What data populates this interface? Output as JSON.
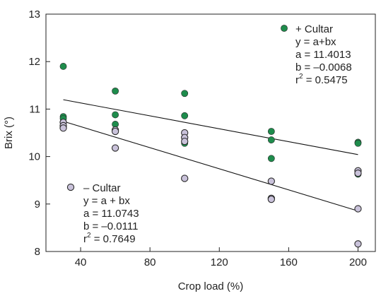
{
  "chart_data": {
    "type": "scatter",
    "xlabel": "Crop load (%)",
    "ylabel": "Brix (°)",
    "xlim": [
      20,
      210
    ],
    "ylim": [
      8,
      13
    ],
    "x_ticks": [
      40,
      80,
      120,
      160,
      200
    ],
    "y_ticks": [
      8,
      9,
      10,
      11,
      12,
      13
    ],
    "x_tick_labels": [
      "40",
      "80",
      "120",
      "160",
      "200"
    ],
    "y_tick_labels": [
      "8",
      "9",
      "10",
      "11",
      "12",
      "13"
    ],
    "grid": false,
    "series": [
      {
        "name": "+ Cultar",
        "color": "#1e8c4c",
        "marker": "filled-circle",
        "points": [
          {
            "x": 30,
            "y": 11.9
          },
          {
            "x": 30,
            "y": 10.84
          },
          {
            "x": 30,
            "y": 10.8
          },
          {
            "x": 60,
            "y": 11.38
          },
          {
            "x": 60,
            "y": 10.88
          },
          {
            "x": 60,
            "y": 10.68
          },
          {
            "x": 100,
            "y": 11.33
          },
          {
            "x": 100,
            "y": 10.86
          },
          {
            "x": 100,
            "y": 10.28
          },
          {
            "x": 150,
            "y": 10.53
          },
          {
            "x": 150,
            "y": 10.35
          },
          {
            "x": 150,
            "y": 9.96
          },
          {
            "x": 200,
            "y": 10.3
          },
          {
            "x": 200,
            "y": 10.28
          },
          {
            "x": 200,
            "y": 9.63
          }
        ],
        "fit": {
          "a": 11.4013,
          "b": -0.0068,
          "x_range": [
            30,
            200
          ]
        },
        "annotation_lines": [
          "+ Cultar",
          "y = a+bx",
          "a = 11.4013",
          "b = –0.0068",
          "r2 = 0.5475"
        ]
      },
      {
        "name": "– Cultar",
        "color": "#c9c2da",
        "marker": "open-circle",
        "points": [
          {
            "x": 30,
            "y": 10.72
          },
          {
            "x": 30,
            "y": 10.65
          },
          {
            "x": 30,
            "y": 10.6
          },
          {
            "x": 60,
            "y": 10.56
          },
          {
            "x": 60,
            "y": 10.53
          },
          {
            "x": 60,
            "y": 10.18
          },
          {
            "x": 100,
            "y": 10.5
          },
          {
            "x": 100,
            "y": 10.4
          },
          {
            "x": 100,
            "y": 10.32
          },
          {
            "x": 100,
            "y": 9.54
          },
          {
            "x": 150,
            "y": 9.48
          },
          {
            "x": 150,
            "y": 9.12
          },
          {
            "x": 150,
            "y": 9.1
          },
          {
            "x": 200,
            "y": 9.7
          },
          {
            "x": 200,
            "y": 9.65
          },
          {
            "x": 200,
            "y": 8.9
          },
          {
            "x": 200,
            "y": 8.16
          }
        ],
        "fit": {
          "a": 11.0743,
          "b": -0.0111,
          "x_range": [
            30,
            200
          ]
        },
        "annotation_lines": [
          "– Cultar",
          "y = a + bx",
          "a = 11.0743",
          "b = –0.0111",
          "r2 = 0.7649"
        ]
      }
    ]
  },
  "annotations": {
    "plus": {
      "label": "+ Cultar",
      "eq": "y = a+bx",
      "a": "a = 11.4013",
      "b": "b = –0.0068",
      "r2_prefix": "r",
      "r2_sup": "2",
      "r2_value": " = 0.5475"
    },
    "minus": {
      "label": "– Cultar",
      "eq": "y = a + bx",
      "a": "a = 11.0743",
      "b": "b = –0.0111",
      "r2_prefix": "r",
      "r2_sup": "2",
      "r2_value": " = 0.7649"
    }
  }
}
